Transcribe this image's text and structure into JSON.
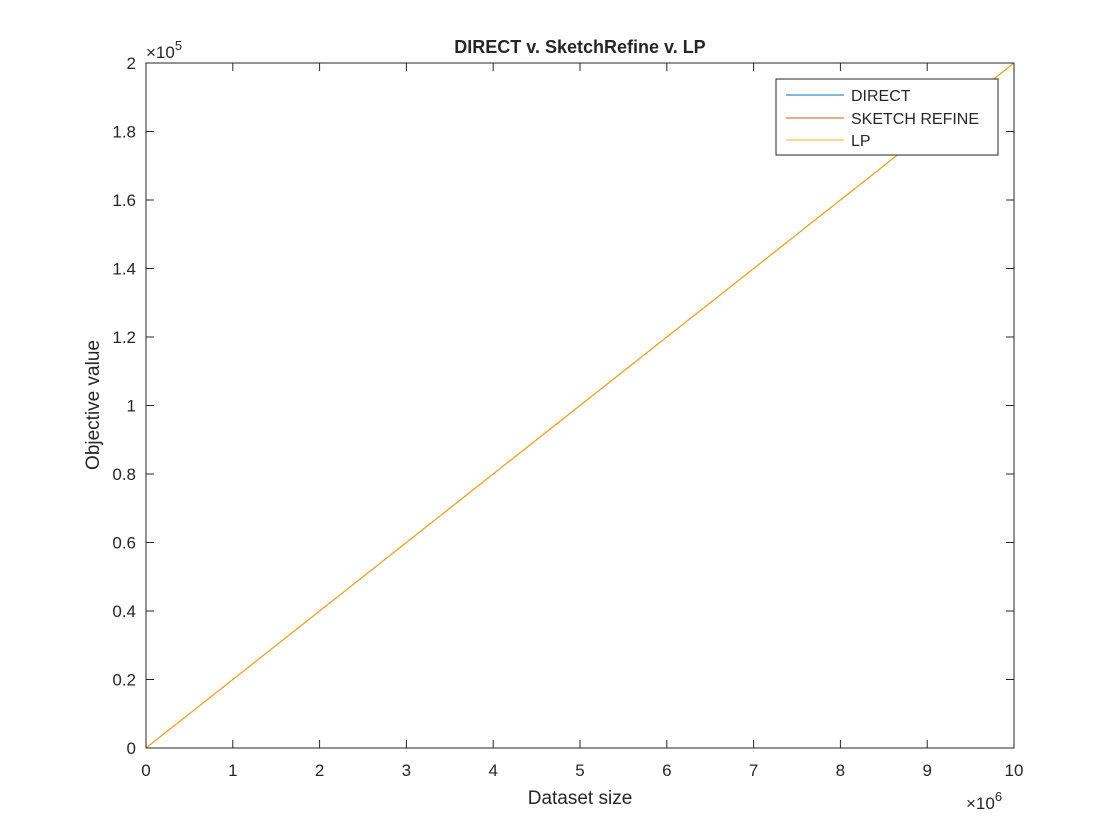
{
  "chart_data": {
    "type": "line",
    "title": "DIRECT v. SketchRefine v. LP",
    "xlabel": "Dataset size",
    "ylabel": "Objective value",
    "x_exponent_base": "×10",
    "x_exponent_power": "6",
    "y_exponent_base": "×10",
    "y_exponent_power": "5",
    "xlim": [
      0,
      10
    ],
    "ylim": [
      0,
      2
    ],
    "x_ticks": [
      0,
      1,
      2,
      3,
      4,
      5,
      6,
      7,
      8,
      9,
      10
    ],
    "x_tick_labels": [
      "0",
      "1",
      "2",
      "3",
      "4",
      "5",
      "6",
      "7",
      "8",
      "9",
      "10"
    ],
    "y_ticks": [
      0,
      0.2,
      0.4,
      0.6,
      0.8,
      1,
      1.2,
      1.4,
      1.6,
      1.8,
      2
    ],
    "y_tick_labels": [
      "0",
      "0.2",
      "0.4",
      "0.6",
      "0.8",
      "1",
      "1.2",
      "1.4",
      "1.6",
      "1.8",
      "2"
    ],
    "grid": false,
    "legend_position": "top-right",
    "series": [
      {
        "name": "DIRECT",
        "color": "#0072BD",
        "x": [
          0,
          10
        ],
        "y": [
          0,
          2
        ]
      },
      {
        "name": "SKETCH REFINE",
        "color": "#D95319",
        "x": [
          0,
          10
        ],
        "y": [
          0,
          2
        ]
      },
      {
        "name": "LP",
        "color": "#EDB120",
        "x": [
          0,
          10
        ],
        "y": [
          0,
          2
        ]
      }
    ]
  }
}
